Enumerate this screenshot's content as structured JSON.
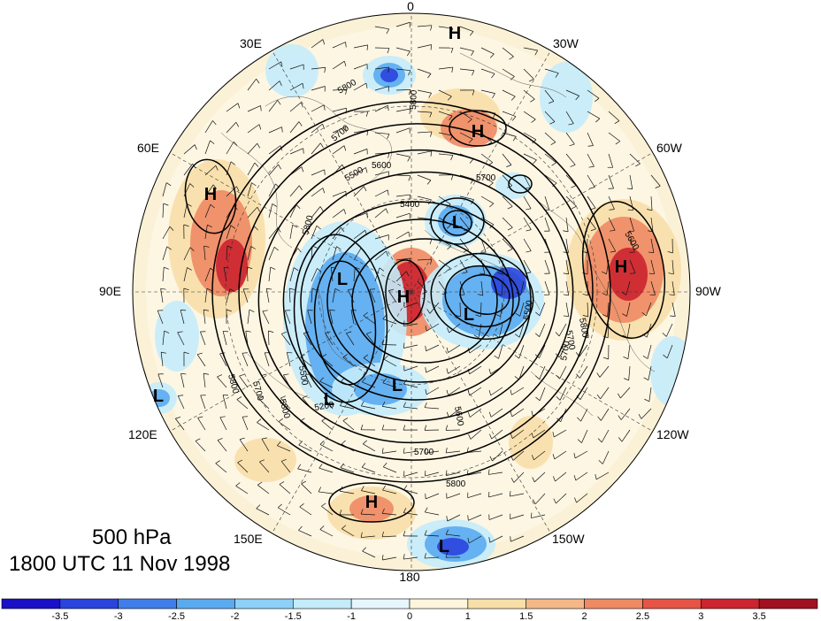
{
  "title": {
    "level": "500 hPa",
    "time": "1800 UTC 11 Nov 1998"
  },
  "longitude_labels": [
    "0",
    "30W",
    "60W",
    "90W",
    "120W",
    "150W",
    "180",
    "150E",
    "120E",
    "90E",
    "60E",
    "30E"
  ],
  "contour_labels": [
    "5800",
    "5800",
    "5700",
    "5600",
    "5500",
    "5400",
    "5700",
    "5800",
    "5600",
    "5500",
    "5700",
    "5800",
    "5500",
    "5200",
    "5700",
    "5600",
    "5800",
    "5700",
    "5800",
    "5700",
    "5800"
  ],
  "pressure_centers": [
    "H",
    "H",
    "H",
    "L",
    "L",
    "H",
    "L",
    "H",
    "L",
    "L",
    "L",
    "H",
    "L"
  ],
  "colorbar": {
    "tick_labels": [
      "-3.5",
      "-3",
      "-2.5",
      "-2",
      "-1.5",
      "-1",
      "0",
      "1",
      "1.5",
      "2",
      "2.5",
      "3",
      "3.5"
    ],
    "colors": [
      "#1a10c8",
      "#2a44dd",
      "#3f7de8",
      "#5aaaf0",
      "#8dd0f8",
      "#c4ecfb",
      "#e6f6fd",
      "#fdf6dc",
      "#f8dfa8",
      "#f4b888",
      "#ee8a64",
      "#e65445",
      "#cc2430",
      "#a01020"
    ]
  },
  "anomaly_colors": {
    "strong_negative": "#2a44dd",
    "negative": "#5aaaf0",
    "weak_negative": "#c4ecfb",
    "weak_positive": "#f8dfa8",
    "positive": "#ee8a64",
    "strong_positive": "#cc2430"
  }
}
